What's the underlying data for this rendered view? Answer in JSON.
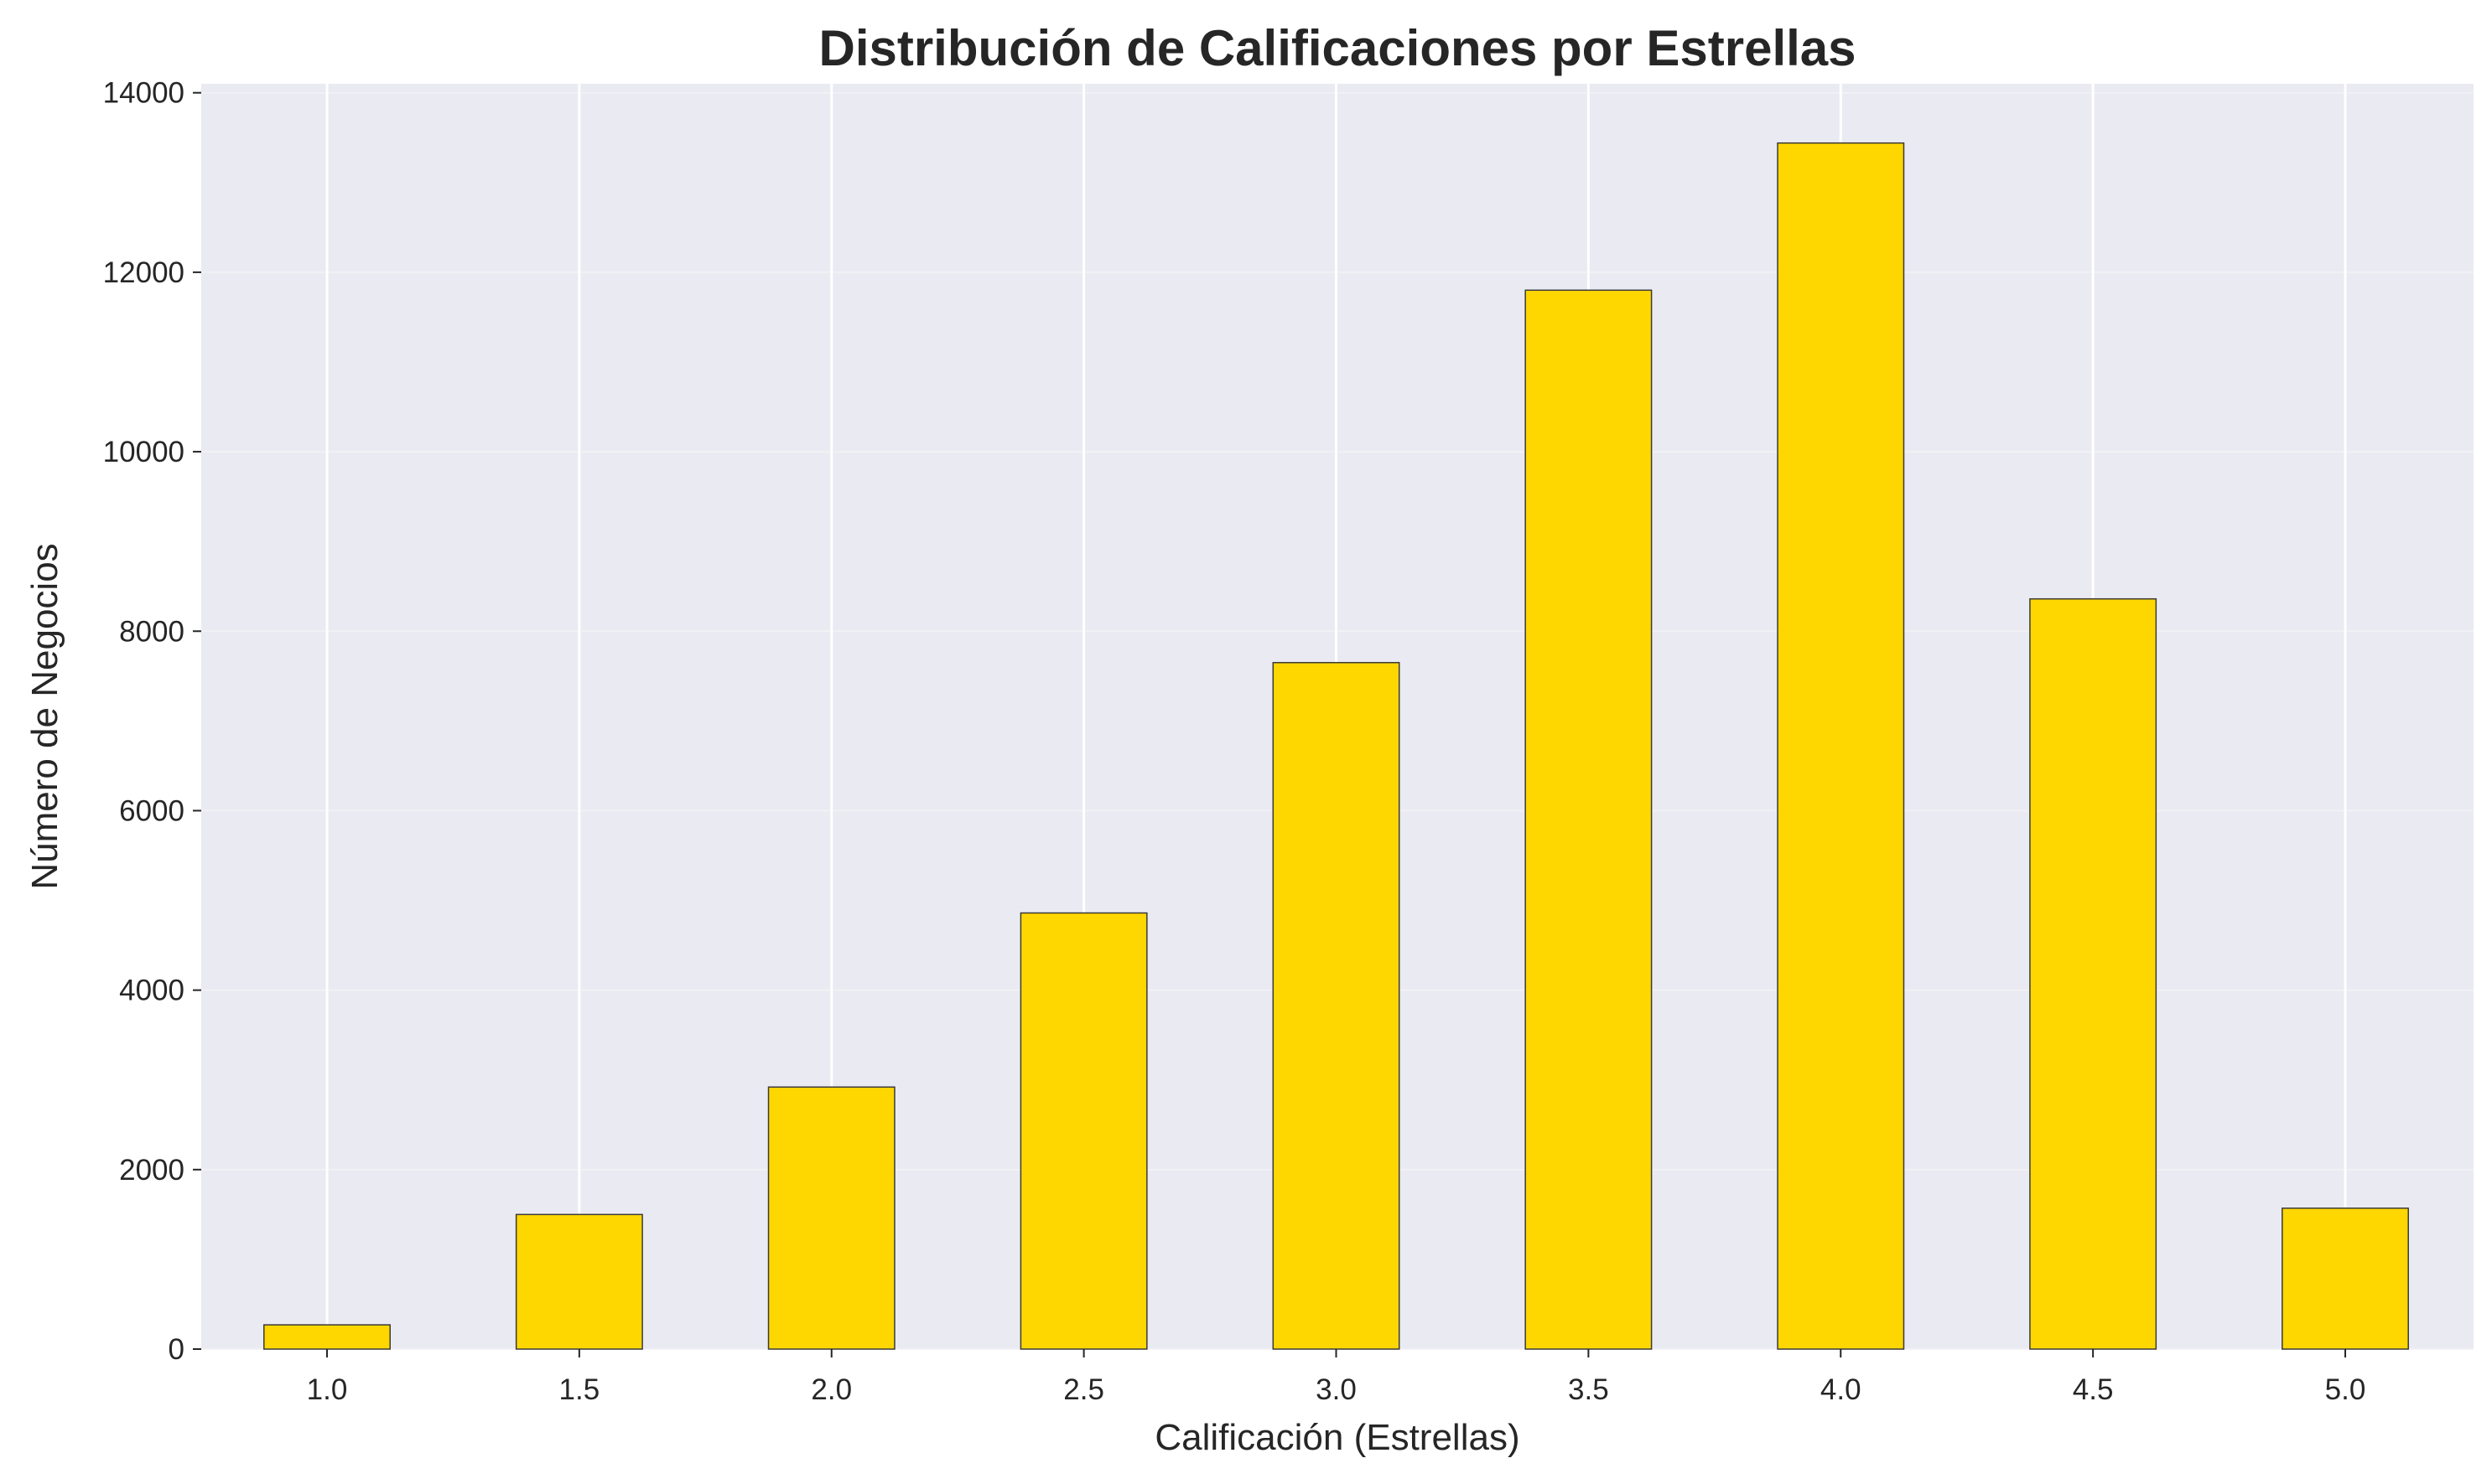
{
  "chart_data": {
    "type": "bar",
    "title": "Distribución de Calificaciones por Estrellas",
    "xlabel": "Calificación (Estrellas)",
    "ylabel": "Número de Negocios",
    "categories": [
      "1.0",
      "1.5",
      "2.0",
      "2.5",
      "3.0",
      "3.5",
      "4.0",
      "4.5",
      "5.0"
    ],
    "values": [
      270,
      1500,
      2920,
      4860,
      7650,
      11800,
      13440,
      8360,
      1570
    ],
    "ylim": [
      0,
      14100
    ],
    "yticks": [
      0,
      2000,
      4000,
      6000,
      8000,
      10000,
      12000,
      14000
    ],
    "ytick_labels": [
      "0",
      "2000",
      "4000",
      "6000",
      "8000",
      "10000",
      "12000",
      "14000"
    ],
    "grid": true,
    "colors": {
      "bar_fill": "#FFD700",
      "bar_edge": "#3a3a3a",
      "plot_background": "#EAEAF2"
    }
  }
}
